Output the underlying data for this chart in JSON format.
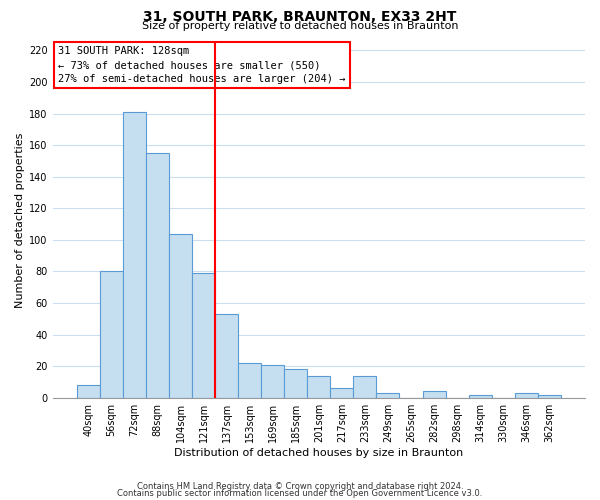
{
  "title": "31, SOUTH PARK, BRAUNTON, EX33 2HT",
  "subtitle": "Size of property relative to detached houses in Braunton",
  "xlabel": "Distribution of detached houses by size in Braunton",
  "ylabel": "Number of detached properties",
  "bar_labels": [
    "40sqm",
    "56sqm",
    "72sqm",
    "88sqm",
    "104sqm",
    "121sqm",
    "137sqm",
    "153sqm",
    "169sqm",
    "185sqm",
    "201sqm",
    "217sqm",
    "233sqm",
    "249sqm",
    "265sqm",
    "282sqm",
    "298sqm",
    "314sqm",
    "330sqm",
    "346sqm",
    "362sqm"
  ],
  "bar_values": [
    8,
    80,
    181,
    155,
    104,
    79,
    53,
    22,
    21,
    18,
    14,
    6,
    14,
    3,
    0,
    4,
    0,
    2,
    0,
    3,
    2
  ],
  "bar_color": "#c5dff0",
  "bar_edgecolor": "#5b9bd5",
  "vline_x_index": 6,
  "vline_color": "red",
  "ylim": [
    0,
    225
  ],
  "yticks": [
    0,
    20,
    40,
    60,
    80,
    100,
    120,
    140,
    160,
    180,
    200,
    220
  ],
  "annotation_title": "31 SOUTH PARK: 128sqm",
  "annotation_line1": "← 73% of detached houses are smaller (550)",
  "annotation_line2": "27% of semi-detached houses are larger (204) →",
  "annotation_box_color": "#ffffff",
  "annotation_box_edgecolor": "red",
  "footer1": "Contains HM Land Registry data © Crown copyright and database right 2024.",
  "footer2": "Contains public sector information licensed under the Open Government Licence v3.0.",
  "bg_color": "#ffffff",
  "grid_color": "#ccddee",
  "title_fontsize": 10,
  "subtitle_fontsize": 8,
  "ylabel_fontsize": 8,
  "xlabel_fontsize": 8,
  "tick_fontsize": 7,
  "footer_fontsize": 6
}
